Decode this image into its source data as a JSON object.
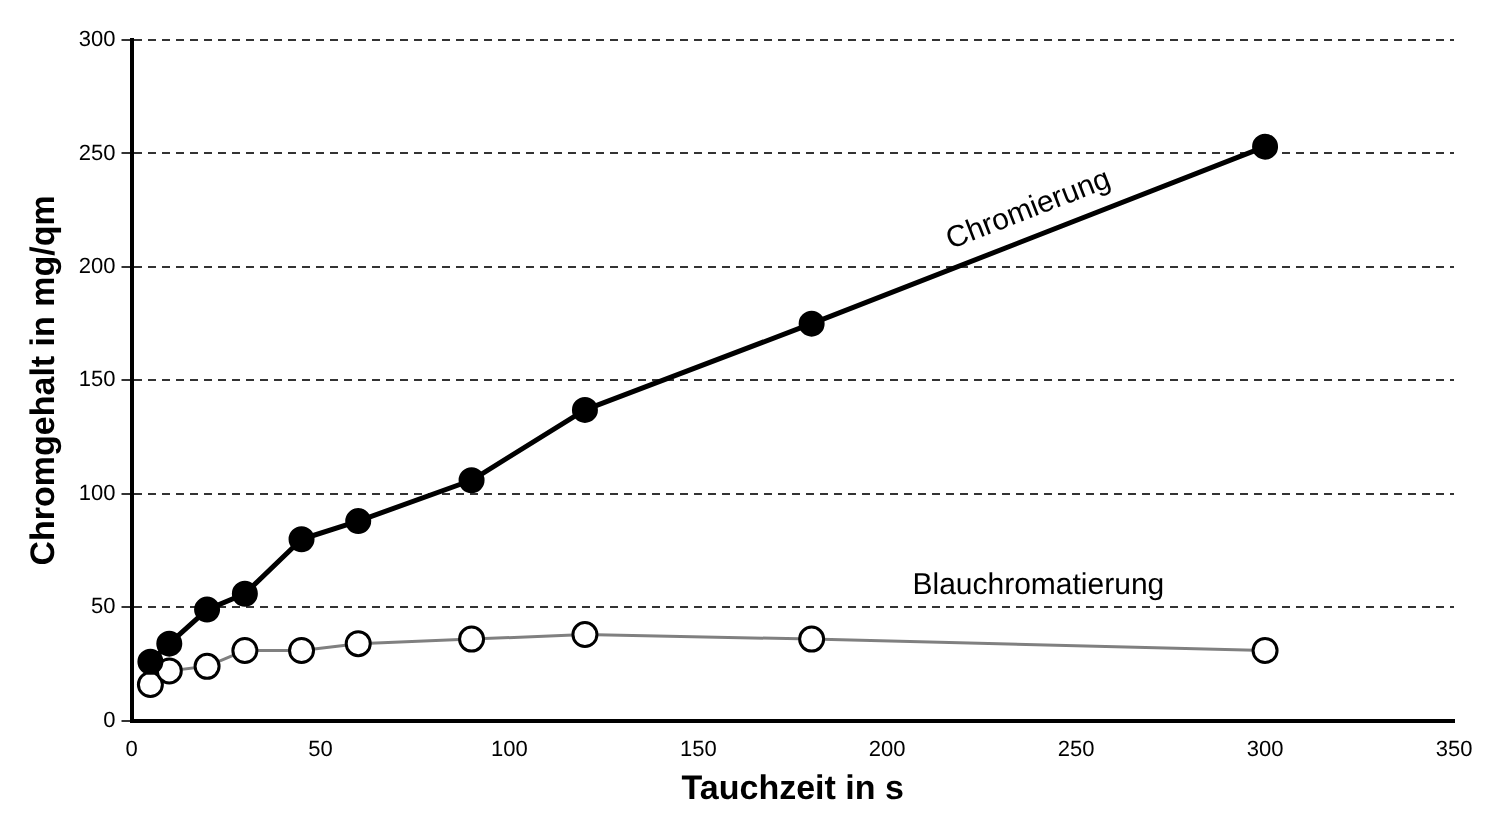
{
  "chart_data": {
    "type": "line",
    "xlabel": "Tauchzeit in s",
    "ylabel": "Chromgehalt in mg/qm",
    "x": [
      5,
      10,
      20,
      30,
      45,
      60,
      90,
      120,
      180,
      300
    ],
    "series": [
      {
        "name": "Chromierung",
        "color": "#000000",
        "values": [
          26,
          34,
          49,
          56,
          80,
          88,
          106,
          137,
          175,
          253
        ]
      },
      {
        "name": "Blauchromatierung",
        "color": "#808080",
        "values": [
          16,
          22,
          24,
          31,
          31,
          34,
          36,
          38,
          36,
          31
        ]
      }
    ],
    "xlim": [
      0,
      350
    ],
    "xticks": [
      0,
      50,
      100,
      150,
      200,
      250,
      300,
      350
    ],
    "ylim": [
      0,
      300
    ],
    "yticks": [
      0,
      50,
      100,
      150,
      200,
      250,
      300
    ],
    "grid": "y",
    "marker": "circle",
    "line_style": "solid",
    "legend": false
  }
}
